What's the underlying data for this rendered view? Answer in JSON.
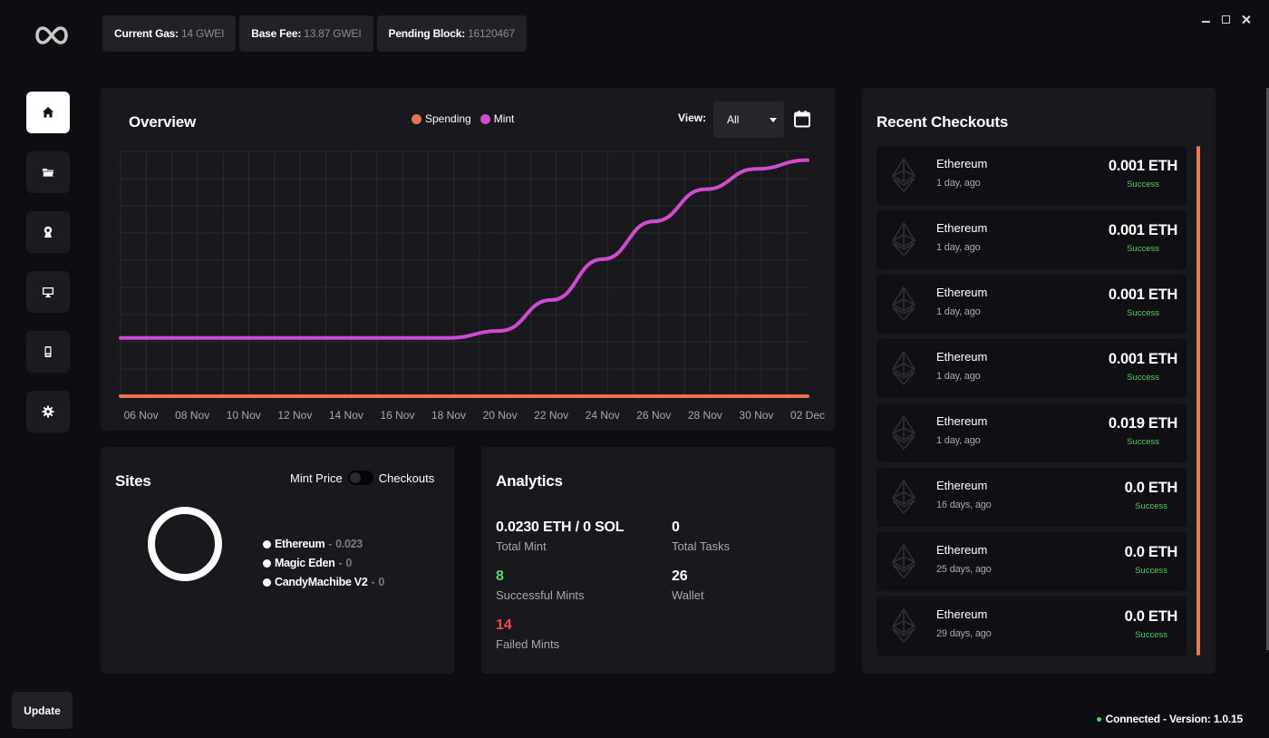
{
  "app": {
    "logo_icon": "infinity-logo-icon"
  },
  "gas": [
    {
      "label": "Current Gas:",
      "value": "14 GWEI"
    },
    {
      "label": "Base Fee:",
      "value": "13.87 GWEI"
    },
    {
      "label": "Pending Block:",
      "value": "16120467"
    }
  ],
  "window_controls": [
    "minimize-icon",
    "maximize-icon",
    "close-icon"
  ],
  "sidebar": {
    "items": [
      {
        "icon": "home-icon",
        "active": true
      },
      {
        "icon": "folder-icon",
        "active": false
      },
      {
        "icon": "profile-icon",
        "active": false
      },
      {
        "icon": "monitor-icon",
        "active": false
      },
      {
        "icon": "phone-icon",
        "active": false
      },
      {
        "icon": "gear-icon",
        "active": false
      }
    ]
  },
  "overview": {
    "title": "Overview",
    "legend": [
      {
        "label": "Spending",
        "color": "#e8744f"
      },
      {
        "label": "Mint",
        "color": "#d14bd0"
      }
    ],
    "view_label": "View:",
    "view_value": "All",
    "calendar_icon": "calendar-icon"
  },
  "chart_data": {
    "type": "line",
    "title": "Overview",
    "x": [
      "06 Nov",
      "08 Nov",
      "10 Nov",
      "12 Nov",
      "14 Nov",
      "16 Nov",
      "18 Nov",
      "20 Nov",
      "22 Nov",
      "24 Nov",
      "26 Nov",
      "28 Nov",
      "30 Nov",
      "02 Dec"
    ],
    "series": [
      {
        "name": "Spending",
        "color": "#e8744f",
        "values": [
          0.0,
          0.0,
          0.0,
          0.0,
          0.0,
          0.0,
          0.0,
          0.0,
          0.0,
          0.0,
          0.0,
          0.0,
          0.0,
          0.0
        ]
      },
      {
        "name": "Mint",
        "color": "#d14bd0",
        "values": [
          1.0,
          1.0,
          1.0,
          1.0,
          1.0,
          1.0,
          1.0,
          1.12,
          1.65,
          2.35,
          3.0,
          3.55,
          3.9,
          4.05
        ]
      }
    ],
    "ylim": [
      0,
      4.2
    ],
    "grid": true,
    "legend_position": "top-center"
  },
  "sites": {
    "title": "Sites",
    "toggle_left": "Mint Price",
    "toggle_right": "Checkouts",
    "items": [
      {
        "name": "Ethereum",
        "sep": " - ",
        "value": "0.023"
      },
      {
        "name": "Magic Eden",
        "sep": " - ",
        "value": "0"
      },
      {
        "name": "CandyMachibe V2",
        "sep": " - ",
        "value": "0"
      }
    ]
  },
  "analytics": {
    "title": "Analytics",
    "total_mint": {
      "value": "0.0230 ETH / 0 SOL",
      "label": "Total Mint"
    },
    "total_tasks": {
      "value": "0",
      "label": "Total Tasks"
    },
    "successful": {
      "value": "8",
      "label": "Successful Mints"
    },
    "wallet": {
      "value": "26",
      "label": "Wallet"
    },
    "failed": {
      "value": "14",
      "label": "Failed Mints"
    }
  },
  "recent": {
    "title": "Recent Checkouts",
    "items": [
      {
        "name": "Ethereum",
        "time": "1 day, ago",
        "amount": "0.001 ETH",
        "status": "Success"
      },
      {
        "name": "Ethereum",
        "time": "1 day, ago",
        "amount": "0.001 ETH",
        "status": "Success"
      },
      {
        "name": "Ethereum",
        "time": "1 day, ago",
        "amount": "0.001 ETH",
        "status": "Success"
      },
      {
        "name": "Ethereum",
        "time": "1 day, ago",
        "amount": "0.001 ETH",
        "status": "Success"
      },
      {
        "name": "Ethereum",
        "time": "1 day, ago",
        "amount": "0.019 ETH",
        "status": "Success"
      },
      {
        "name": "Ethereum",
        "time": "16 days, ago",
        "amount": "0.0 ETH",
        "status": "Success"
      },
      {
        "name": "Ethereum",
        "time": "25 days, ago",
        "amount": "0.0 ETH",
        "status": "Success"
      },
      {
        "name": "Ethereum",
        "time": "29 days, ago",
        "amount": "0.0 ETH",
        "status": "Success"
      }
    ]
  },
  "update_label": "Update",
  "status_text": "Connected - Version: 1.0.15",
  "status_color": "#3ddc5a"
}
